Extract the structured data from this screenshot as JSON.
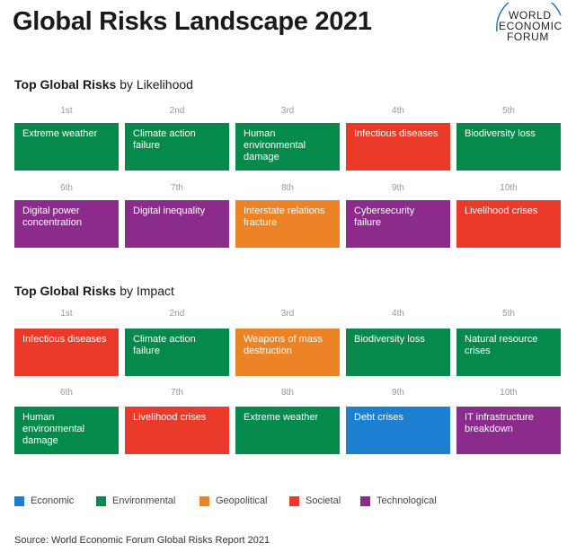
{
  "title": "Global Risks Landscape 2021",
  "logo": {
    "lines": [
      "WORLD",
      "ECONOMIC",
      "FORUM"
    ]
  },
  "colors": {
    "Economic": "#1d7fd1",
    "Environmental": "#058a4c",
    "Geopolitical": "#ec8427",
    "Societal": "#ec3a2a",
    "Technological": "#8b2b8c"
  },
  "likelihood": {
    "title_bold": "Top Global Risks",
    "title_rest": " by Likelihood",
    "items": [
      {
        "rank": "1st",
        "label": "Extreme weather",
        "category": "Environmental"
      },
      {
        "rank": "2nd",
        "label": "Climate action failure",
        "category": "Environmental"
      },
      {
        "rank": "3rd",
        "label": "Human environmental damage",
        "category": "Environmental"
      },
      {
        "rank": "4th",
        "label": "Infectious diseases",
        "category": "Societal"
      },
      {
        "rank": "5th",
        "label": "Biodiversity loss",
        "category": "Environmental"
      },
      {
        "rank": "6th",
        "label": "Digital power concentration",
        "category": "Technological"
      },
      {
        "rank": "7th",
        "label": "Digital inequality",
        "category": "Technological"
      },
      {
        "rank": "8th",
        "label": "Interstate relations fracture",
        "category": "Geopolitical"
      },
      {
        "rank": "9th",
        "label": "Cybersecurity failure",
        "category": "Technological"
      },
      {
        "rank": "10th",
        "label": "Livelihood crises",
        "category": "Societal"
      }
    ]
  },
  "impact": {
    "title_bold": "Top Global Risks",
    "title_rest": " by Impact",
    "items": [
      {
        "rank": "1st",
        "label": "Infectious diseases",
        "category": "Societal"
      },
      {
        "rank": "2nd",
        "label": "Climate action failure",
        "category": "Environmental"
      },
      {
        "rank": "3rd",
        "label": "Weapons of mass destruction",
        "category": "Geopolitical"
      },
      {
        "rank": "4th",
        "label": "Biodiversity loss",
        "category": "Environmental"
      },
      {
        "rank": "5th",
        "label": "Natural resource crises",
        "category": "Environmental"
      },
      {
        "rank": "6th",
        "label": "Human environmental damage",
        "category": "Environmental"
      },
      {
        "rank": "7th",
        "label": "Livelihood crises",
        "category": "Societal"
      },
      {
        "rank": "8th",
        "label": "Extreme weather",
        "category": "Environmental"
      },
      {
        "rank": "9th",
        "label": "Debt crises",
        "category": "Economic"
      },
      {
        "rank": "10th",
        "label": "IT infrastructure breakdown",
        "category": "Technological"
      }
    ]
  },
  "legend": [
    "Economic",
    "Environmental",
    "Geopolitical",
    "Societal",
    "Technological"
  ],
  "source": "Source: World Economic Forum Global Risks Report 2021"
}
